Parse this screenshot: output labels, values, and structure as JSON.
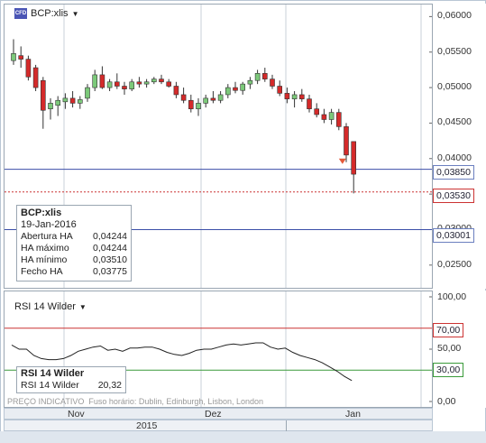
{
  "instrument": {
    "symbol": "BCP:xlis",
    "cfd_badge": "CFD"
  },
  "price_axis": {
    "labels": [
      "0,06000",
      "0,05500",
      "0,05000",
      "0,04500",
      "0,04000",
      "0,03500",
      "0,03000",
      "0,02500"
    ],
    "min": 0.0218,
    "max": 0.0617
  },
  "price_tags": {
    "line_a": "0,03850",
    "current": "0,03530",
    "line_b": "0,03001"
  },
  "ohlc_legend": {
    "title": "BCP:xlis",
    "date": "19-Jan-2016",
    "rows": [
      {
        "label": "Abertura HA",
        "value": "0,04244"
      },
      {
        "label": "HA máximo",
        "value": "0,04244"
      },
      {
        "label": "HA mínimo",
        "value": "0,03510"
      },
      {
        "label": "Fecho HA",
        "value": "0,03775"
      }
    ]
  },
  "rsi": {
    "indicator_label": "RSI 14 Wilder",
    "legend_title": "RSI 14 Wilder",
    "legend_row_label": "RSI 14 Wilder",
    "legend_row_value": "20,32",
    "axis_labels": [
      "100,00",
      "50,00",
      "0,00"
    ],
    "levels": {
      "upper": "70,00",
      "lower": "30,00"
    },
    "values": [
      54,
      50,
      50,
      44,
      41,
      40,
      40,
      41,
      44,
      48,
      50,
      52,
      53,
      49,
      50,
      48,
      51,
      51,
      52,
      52,
      50,
      47,
      45,
      44,
      46,
      49,
      50,
      50,
      52,
      54,
      55,
      54,
      55,
      56,
      56,
      52,
      50,
      51,
      47,
      44,
      42,
      40,
      37,
      33,
      29,
      24,
      20
    ]
  },
  "footer": {
    "note": "PREÇO INDICATIVO",
    "timezone": "Fuso horário: Dublin, Edinburgh, Lisbon, London"
  },
  "x_axis": {
    "months": [
      "Nov",
      "Dez",
      "Jan"
    ],
    "year": "2015"
  },
  "chart_data": {
    "type": "candlestick",
    "title": "BCP:xlis",
    "ylim": [
      0.0218,
      0.0617
    ],
    "candles": [
      {
        "o": 0.0538,
        "h": 0.0568,
        "l": 0.0532,
        "c": 0.0548
      },
      {
        "o": 0.0545,
        "h": 0.0558,
        "l": 0.0528,
        "c": 0.054
      },
      {
        "o": 0.054,
        "h": 0.0545,
        "l": 0.051,
        "c": 0.0515
      },
      {
        "o": 0.0528,
        "h": 0.0532,
        "l": 0.0495,
        "c": 0.05
      },
      {
        "o": 0.051,
        "h": 0.0515,
        "l": 0.0442,
        "c": 0.0468
      },
      {
        "o": 0.047,
        "h": 0.0485,
        "l": 0.0455,
        "c": 0.0478
      },
      {
        "o": 0.0475,
        "h": 0.0488,
        "l": 0.046,
        "c": 0.0482
      },
      {
        "o": 0.048,
        "h": 0.0492,
        "l": 0.047,
        "c": 0.0485
      },
      {
        "o": 0.0485,
        "h": 0.0495,
        "l": 0.0472,
        "c": 0.0478
      },
      {
        "o": 0.0478,
        "h": 0.0488,
        "l": 0.047,
        "c": 0.0483
      },
      {
        "o": 0.0485,
        "h": 0.0505,
        "l": 0.048,
        "c": 0.05
      },
      {
        "o": 0.05,
        "h": 0.0525,
        "l": 0.0495,
        "c": 0.0518
      },
      {
        "o": 0.0518,
        "h": 0.053,
        "l": 0.0498,
        "c": 0.05
      },
      {
        "o": 0.05,
        "h": 0.0512,
        "l": 0.0495,
        "c": 0.0508
      },
      {
        "o": 0.0508,
        "h": 0.052,
        "l": 0.0498,
        "c": 0.0502
      },
      {
        "o": 0.0502,
        "h": 0.0508,
        "l": 0.049,
        "c": 0.0498
      },
      {
        "o": 0.0498,
        "h": 0.0512,
        "l": 0.0495,
        "c": 0.0508
      },
      {
        "o": 0.0508,
        "h": 0.0515,
        "l": 0.05,
        "c": 0.0505
      },
      {
        "o": 0.0505,
        "h": 0.0512,
        "l": 0.05,
        "c": 0.0508
      },
      {
        "o": 0.0508,
        "h": 0.0515,
        "l": 0.0505,
        "c": 0.0512
      },
      {
        "o": 0.0512,
        "h": 0.0518,
        "l": 0.0505,
        "c": 0.0508
      },
      {
        "o": 0.0508,
        "h": 0.0512,
        "l": 0.05,
        "c": 0.0502
      },
      {
        "o": 0.0502,
        "h": 0.0508,
        "l": 0.0485,
        "c": 0.049
      },
      {
        "o": 0.049,
        "h": 0.05,
        "l": 0.0478,
        "c": 0.0482
      },
      {
        "o": 0.0482,
        "h": 0.049,
        "l": 0.0465,
        "c": 0.047
      },
      {
        "o": 0.047,
        "h": 0.0485,
        "l": 0.046,
        "c": 0.0478
      },
      {
        "o": 0.0478,
        "h": 0.049,
        "l": 0.0472,
        "c": 0.0485
      },
      {
        "o": 0.0485,
        "h": 0.0495,
        "l": 0.0478,
        "c": 0.0482
      },
      {
        "o": 0.0482,
        "h": 0.0495,
        "l": 0.0478,
        "c": 0.049
      },
      {
        "o": 0.049,
        "h": 0.0505,
        "l": 0.0485,
        "c": 0.05
      },
      {
        "o": 0.05,
        "h": 0.0508,
        "l": 0.0492,
        "c": 0.0496
      },
      {
        "o": 0.0496,
        "h": 0.0508,
        "l": 0.049,
        "c": 0.0505
      },
      {
        "o": 0.0505,
        "h": 0.0515,
        "l": 0.0498,
        "c": 0.051
      },
      {
        "o": 0.051,
        "h": 0.0525,
        "l": 0.0505,
        "c": 0.052
      },
      {
        "o": 0.052,
        "h": 0.0528,
        "l": 0.0508,
        "c": 0.0512
      },
      {
        "o": 0.0512,
        "h": 0.0518,
        "l": 0.0498,
        "c": 0.0502
      },
      {
        "o": 0.0502,
        "h": 0.051,
        "l": 0.0488,
        "c": 0.0492
      },
      {
        "o": 0.0492,
        "h": 0.05,
        "l": 0.0478,
        "c": 0.0484
      },
      {
        "o": 0.0484,
        "h": 0.0495,
        "l": 0.0472,
        "c": 0.049
      },
      {
        "o": 0.049,
        "h": 0.0498,
        "l": 0.048,
        "c": 0.0484
      },
      {
        "o": 0.0484,
        "h": 0.049,
        "l": 0.0465,
        "c": 0.047
      },
      {
        "o": 0.047,
        "h": 0.0478,
        "l": 0.0458,
        "c": 0.0462
      },
      {
        "o": 0.0462,
        "h": 0.047,
        "l": 0.045,
        "c": 0.0455
      },
      {
        "o": 0.0455,
        "h": 0.047,
        "l": 0.0448,
        "c": 0.0465
      },
      {
        "o": 0.0465,
        "h": 0.047,
        "l": 0.044,
        "c": 0.0445
      },
      {
        "o": 0.0445,
        "h": 0.045,
        "l": 0.0395,
        "c": 0.0405
      },
      {
        "o": 0.0424,
        "h": 0.0424,
        "l": 0.0351,
        "c": 0.0378
      }
    ]
  },
  "colors": {
    "up": "#7cc97a",
    "down": "#d42a2a",
    "wick": "#333333",
    "grid": "#c9d1da",
    "level_blue": "#3b4ea8",
    "level_red": "#cc3333",
    "level_green": "#3a9a3a"
  }
}
